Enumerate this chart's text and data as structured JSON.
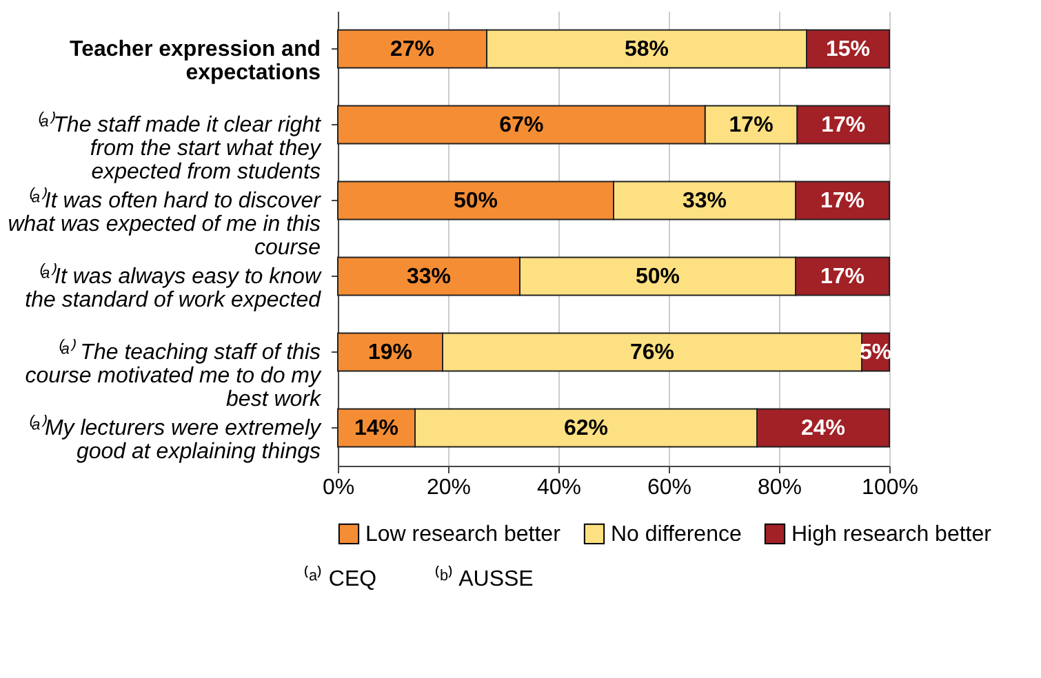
{
  "chart_data": {
    "type": "bar",
    "orientation": "horizontal",
    "stacked": true,
    "categories": [
      "Teacher expression and expectations",
      "⁽ᵃ⁾The staff made it clear right from the start what they expected from students",
      "⁽ᵃ⁾It was often hard to discover what was expected of me in this course",
      "⁽ᵃ⁾It was always easy to know the standard of work expected",
      "⁽ᵃ⁾ The teaching staff of this course motivated me to do my best work",
      "⁽ᵃ⁾My lecturers were extremely good at explaining things"
    ],
    "series": [
      {
        "name": "Low research better",
        "color": "#f58d35",
        "values": [
          27,
          66.6,
          50,
          33,
          19,
          14
        ],
        "value_labels": [
          "27%",
          "67%",
          "50%",
          "33%",
          "19%",
          "14%"
        ]
      },
      {
        "name": "No difference",
        "color": "#fde081",
        "values": [
          58,
          16.7,
          33,
          50,
          76,
          62
        ],
        "value_labels": [
          "58%",
          "17%",
          "33%",
          "50%",
          "76%",
          "62%"
        ]
      },
      {
        "name": "High research better",
        "color": "#a12126",
        "values": [
          15,
          16.7,
          17,
          17,
          5,
          24
        ],
        "value_labels": [
          "15%",
          "17%",
          "17%",
          "17%",
          "5%",
          "24%"
        ]
      }
    ],
    "xlim": [
      0,
      100
    ],
    "xticks": [
      {
        "value": 0,
        "label": "0%"
      },
      {
        "value": 20,
        "label": "20%"
      },
      {
        "value": 40,
        "label": "40%"
      },
      {
        "value": 60,
        "label": "60%"
      },
      {
        "value": 80,
        "label": "80%"
      },
      {
        "value": 100,
        "label": "100%"
      }
    ],
    "grid": "x",
    "legend": "bottom",
    "annotations": [
      "⁽ᵃ⁾ CEQ",
      "⁽ᵇ⁾ AUSSE"
    ]
  }
}
